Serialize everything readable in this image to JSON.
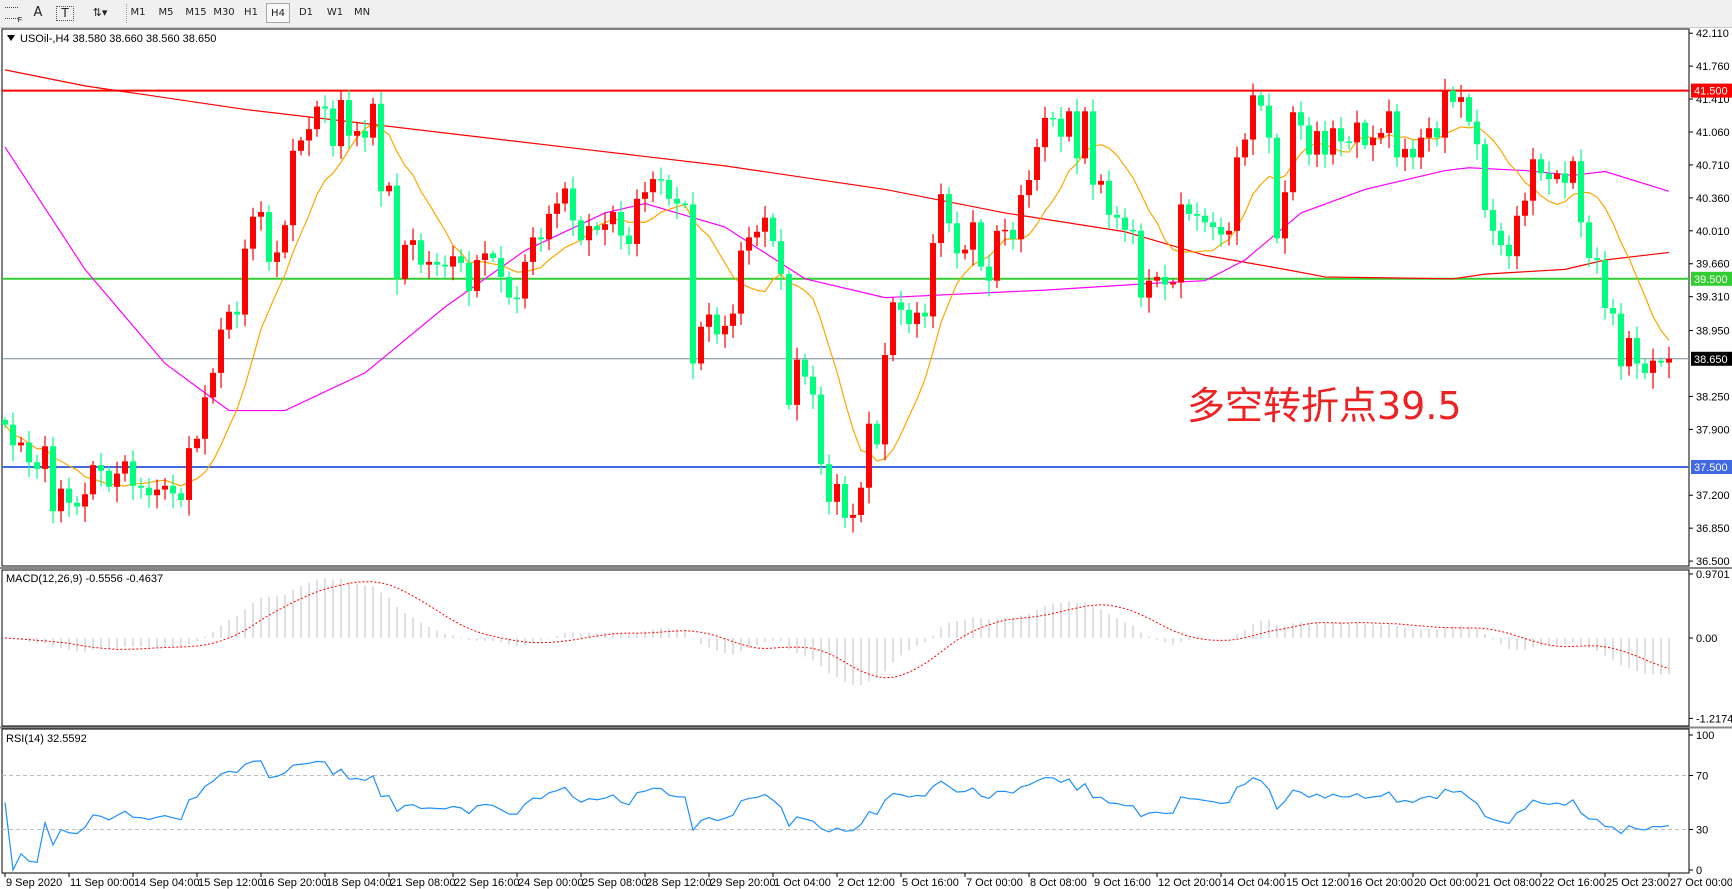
{
  "toolbar": {
    "tools": [
      {
        "name": "period-separators-icon"
      },
      {
        "name": "text-icon",
        "label": "A"
      },
      {
        "name": "text-label-icon",
        "label": "T"
      },
      {
        "name": "arrows-icon",
        "label": "⇅▾"
      }
    ],
    "periods": [
      "M1",
      "M5",
      "M15",
      "M30",
      "H1",
      "H4",
      "D1",
      "W1",
      "MN"
    ],
    "active_period": "H4"
  },
  "main": {
    "legend": "USOil-,H4  38.580 38.660 38.560 38.650",
    "annotation": "多空转折点39.5",
    "annotation_color": "#ee2222",
    "price_ticks": [
      "42.110",
      "41.760",
      "41.410",
      "41.060",
      "40.710",
      "40.360",
      "40.010",
      "39.660",
      "39.310",
      "38.950",
      "38.250",
      "37.900",
      "37.200",
      "36.850",
      "36.500"
    ],
    "levels": [
      {
        "price": 41.5,
        "label": "41.500",
        "color": "#ff0000"
      },
      {
        "price": 39.5,
        "label": "39.500",
        "color": "#32cd32"
      },
      {
        "price": 38.65,
        "label": "38.650",
        "color": "#778899",
        "label_bg": "#000000"
      },
      {
        "price": 37.5,
        "label": "37.500",
        "color": "#4169e1"
      }
    ],
    "up_color": "#ff0000",
    "down_color": "#00ff7f"
  },
  "macd": {
    "legend": "MACD(12,26,9) -0.5556 -0.4637",
    "ticks": [
      "0.9701",
      "0.00",
      "-1.2174"
    ],
    "range": [
      -1.2174,
      0.9701
    ]
  },
  "rsi": {
    "legend": "RSI(14) 32.5592",
    "ticks": [
      "100",
      "70",
      "30",
      "0"
    ],
    "color": "#1e90ff"
  },
  "time_labels": [
    "9 Sep 2020",
    "11 Sep 00:00",
    "14 Sep 04:00",
    "15 Sep 12:00",
    "16 Sep 20:00",
    "18 Sep 04:00",
    "21 Sep 08:00",
    "22 Sep 16:00",
    "24 Sep 00:00",
    "25 Sep 08:00",
    "28 Sep 12:00",
    "29 Sep 20:00",
    "1 Oct 04:00",
    "2 Oct 12:00",
    "5 Oct 16:00",
    "7 Oct 00:00",
    "8 Oct 08:00",
    "9 Oct 16:00",
    "12 Oct 20:00",
    "14 Oct 04:00",
    "15 Oct 12:00",
    "16 Oct 20:00",
    "20 Oct 00:00",
    "21 Oct 08:00",
    "22 Oct 16:00",
    "25 Oct 23:00",
    "27 Oct 00:00"
  ],
  "chart_data": {
    "type": "candlestick",
    "symbol": "USOil-",
    "timeframe": "H4",
    "ylim": [
      36.5,
      42.11
    ],
    "closes": [
      37.95,
      37.73,
      37.76,
      37.55,
      37.48,
      37.72,
      37.03,
      37.27,
      37.12,
      37.08,
      37.21,
      37.52,
      37.46,
      37.29,
      37.43,
      37.56,
      37.3,
      37.28,
      37.2,
      37.26,
      37.3,
      37.22,
      37.15,
      37.7,
      37.8,
      38.24,
      38.5,
      38.96,
      39.15,
      39.12,
      39.82,
      40.16,
      40.21,
      39.68,
      39.78,
      40.07,
      40.86,
      40.97,
      41.09,
      41.33,
      41.31,
      40.91,
      41.4,
      41.02,
      41.07,
      41.0,
      41.36,
      40.43,
      40.49,
      39.5,
      39.86,
      39.91,
      39.65,
      39.68,
      39.65,
      39.63,
      39.74,
      39.67,
      39.37,
      39.7,
      39.77,
      39.72,
      39.52,
      39.3,
      39.29,
      39.68,
      39.94,
      39.92,
      40.19,
      40.3,
      40.46,
      40.12,
      39.91,
      40.06,
      40.02,
      40.08,
      40.21,
      39.96,
      39.87,
      40.35,
      40.42,
      40.56,
      40.55,
      40.35,
      40.3,
      40.29,
      38.6,
      38.99,
      39.12,
      38.91,
      39.0,
      39.13,
      39.8,
      39.94,
      40.0,
      40.15,
      39.9,
      39.55,
      38.16,
      38.64,
      38.46,
      38.27,
      37.53,
      37.13,
      37.32,
      36.96,
      36.99,
      37.28,
      37.96,
      37.74,
      38.69,
      39.25,
      39.17,
      39.02,
      39.14,
      39.1,
      39.88,
      40.4,
      40.09,
      39.77,
      39.81,
      40.1,
      39.63,
      39.48,
      40.01,
      40.02,
      39.92,
      40.39,
      40.55,
      40.9,
      41.21,
      41.2,
      41.01,
      41.28,
      40.78,
      41.28,
      40.5,
      40.54,
      40.18,
      40.15,
      40.02,
      40.01,
      39.3,
      39.48,
      39.52,
      39.44,
      39.46,
      40.29,
      40.19,
      40.17,
      40.1,
      40.05,
      39.97,
      40.01,
      40.79,
      40.98,
      41.45,
      41.34,
      41.0,
      39.93,
      40.42,
      41.27,
      41.13,
      40.82,
      41.07,
      40.82,
      41.1,
      40.96,
      40.95,
      41.16,
      40.92,
      41.0,
      41.05,
      41.28,
      40.79,
      40.88,
      40.79,
      41.0,
      41.1,
      41.0,
      41.5,
      41.38,
      41.43,
      41.17,
      40.93,
      40.23,
      40.01,
      39.86,
      39.74,
      40.17,
      40.33,
      40.77,
      40.62,
      40.56,
      40.62,
      40.52,
      40.75,
      40.1,
      39.72,
      39.7,
      39.19,
      39.13,
      38.57,
      38.87,
      38.6,
      38.5,
      38.63,
      38.61,
      38.65
    ],
    "ma_short_color": "#ffa500",
    "ma_mid": {
      "color": "#ff00ff",
      "points": [
        [
          0,
          40.9
        ],
        [
          10,
          39.6
        ],
        [
          20,
          38.6
        ],
        [
          28,
          38.1
        ],
        [
          35,
          38.1
        ],
        [
          45,
          38.5
        ],
        [
          55,
          39.2
        ],
        [
          65,
          39.8
        ],
        [
          75,
          40.2
        ],
        [
          80,
          40.3
        ],
        [
          90,
          40.05
        ],
        [
          100,
          39.5
        ],
        [
          110,
          39.3
        ],
        [
          130,
          39.38
        ],
        [
          145,
          39.46
        ],
        [
          150,
          39.48
        ],
        [
          155,
          39.7
        ],
        [
          162,
          40.2
        ],
        [
          170,
          40.45
        ],
        [
          180,
          40.65
        ],
        [
          183,
          40.68
        ],
        [
          190,
          40.65
        ],
        [
          196,
          40.6
        ],
        [
          200,
          40.64
        ],
        [
          208,
          40.43
        ]
      ]
    },
    "ma_long": {
      "color": "#ff0000",
      "points": [
        [
          0,
          41.72
        ],
        [
          10,
          41.55
        ],
        [
          30,
          41.3
        ],
        [
          50,
          41.1
        ],
        [
          72,
          40.88
        ],
        [
          90,
          40.7
        ],
        [
          110,
          40.45
        ],
        [
          125,
          40.2
        ],
        [
          140,
          40.0
        ],
        [
          150,
          39.75
        ],
        [
          160,
          39.6
        ],
        [
          165,
          39.52
        ],
        [
          181,
          39.5
        ],
        [
          185,
          39.55
        ],
        [
          195,
          39.6
        ],
        [
          200,
          39.7
        ],
        [
          208,
          39.78
        ]
      ]
    }
  }
}
